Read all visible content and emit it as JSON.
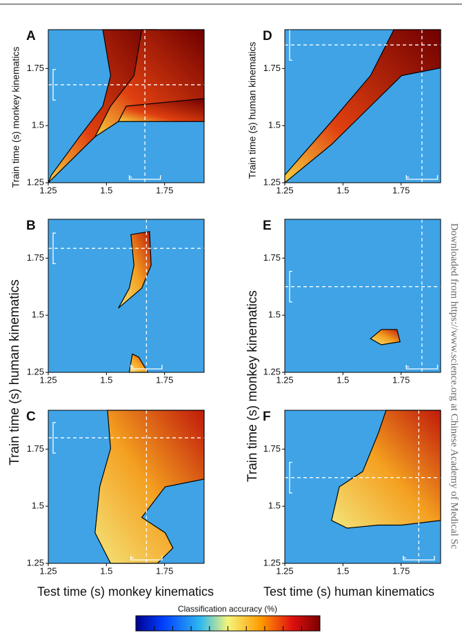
{
  "panels": [
    {
      "letter": "A",
      "xticks": [
        1.25,
        1.5,
        1.75
      ],
      "yticks": [
        1.25,
        1.5,
        1.75
      ]
    },
    {
      "letter": "B",
      "xticks": [
        1.25,
        1.5,
        1.75
      ],
      "yticks": [
        1.25,
        1.5,
        1.75
      ]
    },
    {
      "letter": "C",
      "xticks": [
        1.25,
        1.5,
        1.75
      ],
      "yticks": [
        1.25,
        1.5,
        1.75
      ]
    },
    {
      "letter": "D",
      "xticks": [
        1.25,
        1.5,
        1.75
      ],
      "yticks": [
        1.25,
        1.5,
        1.75
      ]
    },
    {
      "letter": "E",
      "xticks": [
        1.25,
        1.5,
        1.75
      ],
      "yticks": [
        1.25,
        1.5,
        1.75
      ]
    },
    {
      "letter": "F",
      "xticks": [
        1.25,
        1.5,
        1.75
      ],
      "yticks": [
        1.25,
        1.5,
        1.75
      ]
    }
  ],
  "y_labels": {
    "a": "Train time (s) monkey kinematics",
    "b_c": "Train time (s) human kinematics",
    "d": "Train time (s)  human kinematics",
    "e_f": "Train time (s) monkey kinematics"
  },
  "x_labels": {
    "left": "Test time (s) monkey kinematics",
    "right": "Test time (s) human kinematics"
  },
  "colorbar": {
    "label": "Classification accuracy (%)"
  },
  "side_note": "Downloaded from https://www.science.org at Chinese Academy of Medical Sc"
}
